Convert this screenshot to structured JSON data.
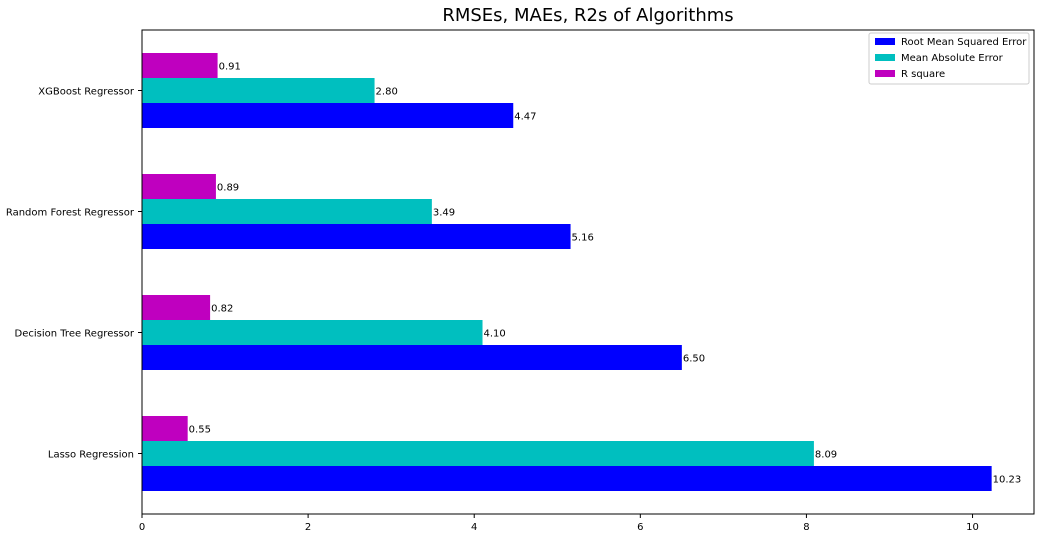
{
  "chart_data": {
    "type": "bar",
    "orientation": "horizontal",
    "title": "RMSEs, MAEs, R2s of Algorithms",
    "xlabel": "",
    "ylabel": "",
    "xlim": [
      0,
      10.74
    ],
    "xticks": [
      0,
      2,
      4,
      6,
      8,
      10
    ],
    "categories": [
      "Lasso Regression",
      "Decision Tree Regressor",
      "Random Forest Regressor",
      "XGBoost Regressor"
    ],
    "series": [
      {
        "name": "Root Mean Squared Error",
        "color": "#0000ff",
        "values": [
          10.23,
          6.5,
          5.16,
          4.47
        ],
        "labels": [
          "10.23",
          "6.50",
          "5.16",
          "4.47"
        ]
      },
      {
        "name": "Mean Absolute Error",
        "color": "#00bfbf",
        "values": [
          8.09,
          4.1,
          3.49,
          2.8
        ],
        "labels": [
          "8.09",
          "4.10",
          "3.49",
          "2.80"
        ]
      },
      {
        "name": "R square",
        "color": "#bf00bf",
        "values": [
          0.55,
          0.82,
          0.89,
          0.91
        ],
        "labels": [
          "0.55",
          "0.82",
          "0.89",
          "0.91"
        ]
      }
    ],
    "grid": false,
    "legend_position": "top-right"
  }
}
